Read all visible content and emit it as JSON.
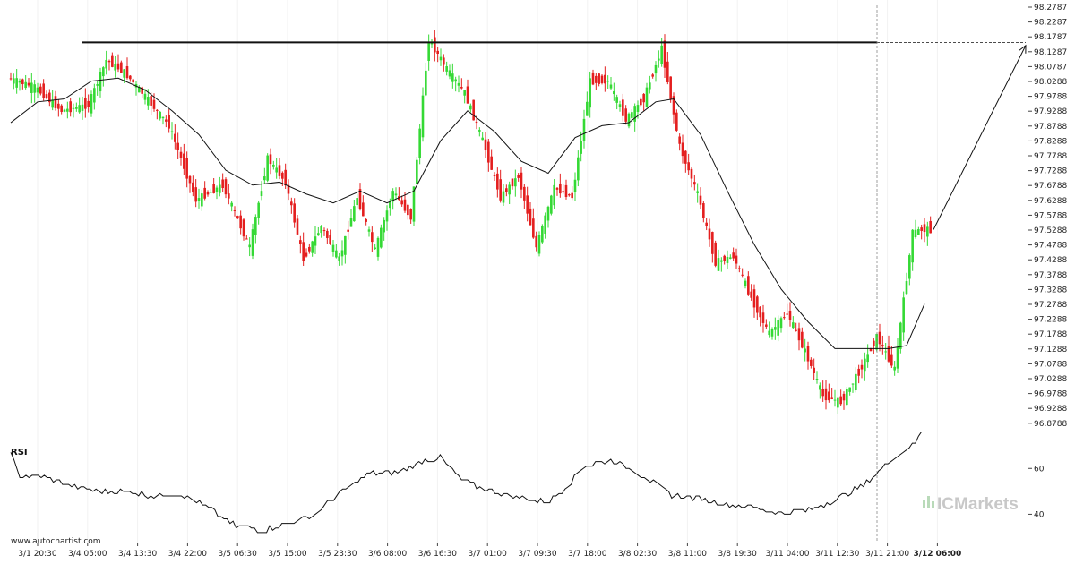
{
  "chart_data": [
    {
      "type": "candlestick",
      "title": "",
      "y_ticks": [
        "98.2787",
        "98.2287",
        "98.1787",
        "98.1287",
        "98.0787",
        "98.0288",
        "97.9788",
        "97.9288",
        "97.8788",
        "97.8288",
        "97.7788",
        "97.7288",
        "97.6788",
        "97.6288",
        "97.5788",
        "97.5288",
        "97.4788",
        "97.4288",
        "97.3788",
        "97.3288",
        "97.2788",
        "97.2288",
        "97.1788",
        "97.1288",
        "97.0788",
        "97.0288",
        "96.9788",
        "96.9288",
        "96.8788"
      ],
      "ylim": [
        96.82,
        98.31
      ],
      "x_ticks": [
        "3/1 20:30",
        "3/4 05:00",
        "3/4 13:30",
        "3/4 22:00",
        "3/5 06:30",
        "3/5 15:00",
        "3/5 23:30",
        "3/6 08:00",
        "3/6 16:30",
        "3/7 01:00",
        "3/7 09:30",
        "3/7 18:00",
        "3/8 02:30",
        "3/8 11:00",
        "3/8 19:30",
        "3/11 04:00",
        "3/11 12:30",
        "3/11 21:00",
        "3/12 06:00"
      ],
      "close_path": [
        [
          0,
          98.04
        ],
        [
          3,
          98.01
        ],
        [
          6,
          97.93
        ],
        [
          9,
          97.95
        ],
        [
          11,
          98.1
        ],
        [
          13,
          98.06
        ],
        [
          15,
          97.99
        ],
        [
          18,
          97.88
        ],
        [
          21,
          97.63
        ],
        [
          24,
          97.68
        ],
        [
          27,
          97.47
        ],
        [
          29,
          97.77
        ],
        [
          31,
          97.69
        ],
        [
          33,
          97.43
        ],
        [
          35,
          97.54
        ],
        [
          37,
          97.43
        ],
        [
          39,
          97.64
        ],
        [
          41,
          97.46
        ],
        [
          43,
          97.66
        ],
        [
          45,
          97.57
        ],
        [
          47,
          98.17
        ],
        [
          49,
          98.07
        ],
        [
          51,
          97.99
        ],
        [
          53,
          97.83
        ],
        [
          55,
          97.64
        ],
        [
          57,
          97.71
        ],
        [
          59,
          97.47
        ],
        [
          61,
          97.67
        ],
        [
          63,
          97.64
        ],
        [
          65,
          98.03
        ],
        [
          67,
          98.03
        ],
        [
          69,
          97.9
        ],
        [
          71,
          97.97
        ],
        [
          73,
          98.14
        ],
        [
          75,
          97.81
        ],
        [
          77,
          97.65
        ],
        [
          79,
          97.42
        ],
        [
          81,
          97.44
        ],
        [
          83,
          97.3
        ],
        [
          85,
          97.18
        ],
        [
          87,
          97.25
        ],
        [
          89,
          97.12
        ],
        [
          91,
          96.97
        ],
        [
          93,
          96.95
        ],
        [
          95,
          97.05
        ],
        [
          97,
          97.17
        ],
        [
          99,
          97.06
        ],
        [
          101,
          97.52
        ],
        [
          102,
          97.53
        ]
      ],
      "sma_path": [
        [
          0,
          97.89
        ],
        [
          3,
          97.96
        ],
        [
          6,
          97.97
        ],
        [
          9,
          98.03
        ],
        [
          12,
          98.04
        ],
        [
          15,
          98.0
        ],
        [
          18,
          97.93
        ],
        [
          21,
          97.85
        ],
        [
          24,
          97.73
        ],
        [
          27,
          97.68
        ],
        [
          30,
          97.69
        ],
        [
          33,
          97.65
        ],
        [
          36,
          97.62
        ],
        [
          39,
          97.66
        ],
        [
          42,
          97.62
        ],
        [
          45,
          97.66
        ],
        [
          48,
          97.83
        ],
        [
          51,
          97.93
        ],
        [
          54,
          97.86
        ],
        [
          57,
          97.76
        ],
        [
          60,
          97.72
        ],
        [
          63,
          97.84
        ],
        [
          66,
          97.88
        ],
        [
          69,
          97.89
        ],
        [
          72,
          97.96
        ],
        [
          74,
          97.97
        ],
        [
          77,
          97.85
        ],
        [
          80,
          97.66
        ],
        [
          83,
          97.48
        ],
        [
          86,
          97.33
        ],
        [
          89,
          97.22
        ],
        [
          92,
          97.13
        ],
        [
          95,
          97.13
        ],
        [
          98,
          97.13
        ],
        [
          100,
          97.14
        ],
        [
          102,
          97.28
        ]
      ],
      "resistance_level": 98.16,
      "resistance_span": [
        8,
        96
      ],
      "projection_target": 98.15,
      "forecast_zone_start": 96
    },
    {
      "type": "line",
      "title": "RSI",
      "y_ticks": [
        "60",
        "40"
      ],
      "ylim": [
        30,
        73
      ],
      "values_path": [
        [
          0,
          66
        ],
        [
          1,
          57
        ],
        [
          4,
          56
        ],
        [
          7,
          52
        ],
        [
          10,
          50
        ],
        [
          13,
          50
        ],
        [
          16,
          48
        ],
        [
          19,
          49
        ],
        [
          22,
          43
        ],
        [
          25,
          35
        ],
        [
          28,
          33
        ],
        [
          31,
          36
        ],
        [
          34,
          40
        ],
        [
          37,
          50
        ],
        [
          40,
          58
        ],
        [
          43,
          58
        ],
        [
          46,
          63
        ],
        [
          48,
          65
        ],
        [
          50,
          56
        ],
        [
          52,
          52
        ],
        [
          54,
          50
        ],
        [
          57,
          47
        ],
        [
          60,
          45
        ],
        [
          62,
          52
        ],
        [
          64,
          61
        ],
        [
          67,
          64
        ],
        [
          69,
          60
        ],
        [
          71,
          56
        ],
        [
          74,
          48
        ],
        [
          77,
          47
        ],
        [
          80,
          44
        ],
        [
          83,
          43
        ],
        [
          86,
          40
        ],
        [
          89,
          42
        ],
        [
          92,
          46
        ],
        [
          95,
          52
        ],
        [
          98,
          63
        ],
        [
          101,
          71
        ],
        [
          102,
          79
        ]
      ]
    }
  ],
  "watermarks": {
    "source": "www.autochartist.com",
    "brand": "ICMarkets"
  },
  "colors": {
    "bull": "#34d934",
    "bear": "#e41e1e",
    "sma": "#111111",
    "resistance": "#111111",
    "rsi_line": "#111111",
    "watermark": "#c8c8c8",
    "watermark_accent": "#b9dab9"
  }
}
